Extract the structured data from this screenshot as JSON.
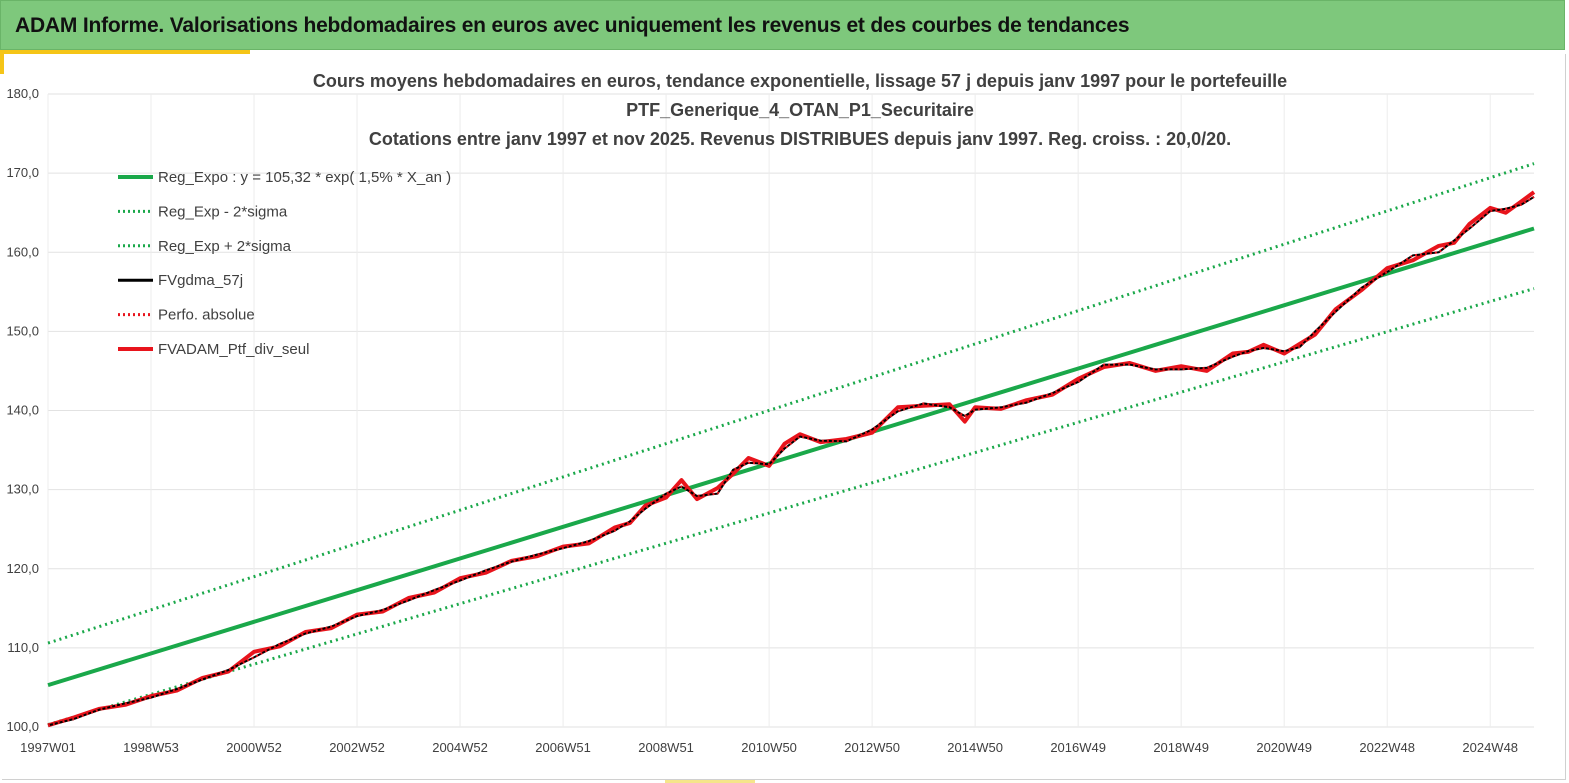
{
  "header": {
    "title": "ADAM Informe. Valorisations hebdomadaires en euros avec uniquement les revenus et des courbes de tendances"
  },
  "colors": {
    "header_bg": "#7ec87c",
    "accent": "#f5c518",
    "trend": "#1aa84a",
    "smooth": "#000000",
    "portfolio": "#e8141c"
  },
  "chart_data": {
    "type": "line",
    "title_lines": [
      "Cours moyens hebdomadaires  en euros, tendance exponentielle, lissage 57 j depuis janv 1997 pour le portefeuille",
      "PTF_Generique_4_OTAN_P1_Securitaire",
      "Cotations entre janv 1997 et nov 2025. Revenus DISTRIBUES depuis janv 1997. Reg. croiss. : 20,0/20."
    ],
    "x_range": [
      1997.0,
      2025.85
    ],
    "ylim": [
      100,
      180
    ],
    "y_ticks": [
      "100,0",
      "110,0",
      "120,0",
      "130,0",
      "140,0",
      "150,0",
      "160,0",
      "170,0",
      "180,0"
    ],
    "x_ticks": [
      {
        "label": "1997W01",
        "t": 1997.0
      },
      {
        "label": "1998W53",
        "t": 1999.0
      },
      {
        "label": "2000W52",
        "t": 2001.0
      },
      {
        "label": "2002W52",
        "t": 2003.0
      },
      {
        "label": "2004W52",
        "t": 2005.0
      },
      {
        "label": "2006W51",
        "t": 2007.0
      },
      {
        "label": "2008W51",
        "t": 2009.0
      },
      {
        "label": "2010W50",
        "t": 2011.0
      },
      {
        "label": "2012W50",
        "t": 2013.0
      },
      {
        "label": "2014W50",
        "t": 2015.0
      },
      {
        "label": "2016W49",
        "t": 2017.0
      },
      {
        "label": "2018W49",
        "t": 2019.0
      },
      {
        "label": "2020W49",
        "t": 2021.0
      },
      {
        "label": "2022W48",
        "t": 2023.0
      },
      {
        "label": "2024W48",
        "t": 2025.0
      }
    ],
    "grid": true,
    "legend_position": "top-left",
    "series": [
      {
        "name": "Reg_Expo : y = 105,32 * exp( 1,5% *  X_an )",
        "style": "solid",
        "color": "#1aa84a",
        "x": [
          1997.0,
          2025.85
        ],
        "values": [
          105.3,
          163.0
        ]
      },
      {
        "name": "Reg_Exp - 2*sigma",
        "style": "dotted",
        "color": "#1aa84a",
        "x": [
          1997.0,
          2025.85
        ],
        "values": [
          100.3,
          155.4
        ]
      },
      {
        "name": "Reg_Exp + 2*sigma",
        "style": "dotted",
        "color": "#1aa84a",
        "x": [
          1997.0,
          2025.85
        ],
        "values": [
          110.6,
          171.2
        ]
      },
      {
        "name": "FVgdma_57j",
        "style": "solid",
        "color": "#000000",
        "x": [
          1997.0,
          1997.5,
          1998.0,
          1998.5,
          1999.0,
          1999.5,
          2000.0,
          2000.5,
          2001.0,
          2001.5,
          2002.0,
          2002.5,
          2003.0,
          2003.5,
          2004.0,
          2004.5,
          2005.0,
          2005.5,
          2006.0,
          2006.5,
          2007.0,
          2007.5,
          2008.0,
          2008.3,
          2008.6,
          2009.0,
          2009.3,
          2009.6,
          2010.0,
          2010.3,
          2010.6,
          2011.0,
          2011.3,
          2011.6,
          2012.0,
          2012.5,
          2013.0,
          2013.5,
          2014.0,
          2014.5,
          2014.8,
          2015.0,
          2015.5,
          2016.0,
          2016.5,
          2017.0,
          2017.5,
          2018.0,
          2018.5,
          2019.0,
          2019.5,
          2020.0,
          2020.3,
          2020.6,
          2021.0,
          2021.3,
          2021.6,
          2022.0,
          2022.5,
          2023.0,
          2023.5,
          2024.0,
          2024.3,
          2024.6,
          2025.0,
          2025.3,
          2025.6,
          2025.85
        ],
        "values": [
          100.2,
          101.0,
          102.2,
          103.0,
          103.7,
          104.8,
          106.0,
          107.2,
          108.8,
          110.5,
          111.8,
          112.7,
          114.0,
          114.8,
          116.0,
          117.3,
          118.5,
          119.8,
          120.9,
          121.8,
          122.6,
          123.5,
          124.8,
          126.0,
          127.6,
          129.5,
          130.4,
          129.2,
          129.5,
          132.5,
          133.4,
          133.2,
          135.2,
          136.7,
          136.2,
          136.1,
          137.6,
          139.9,
          140.9,
          140.4,
          139.3,
          140.1,
          140.4,
          141.0,
          142.2,
          143.6,
          145.8,
          145.8,
          145.2,
          145.2,
          145.4,
          146.8,
          147.5,
          147.9,
          147.5,
          148.0,
          150.0,
          152.5,
          155.5,
          157.5,
          159.6,
          160.0,
          161.5,
          163.0,
          165.2,
          165.5,
          166.0,
          167.0
        ]
      },
      {
        "name": "Perfo. absolue",
        "style": "dotted",
        "color": "#e8141c",
        "x": [
          1997.0,
          1997.5,
          1998.0,
          1998.5,
          1999.0,
          1999.5,
          2000.0,
          2000.5,
          2001.0,
          2001.5,
          2002.0,
          2002.5,
          2003.0,
          2003.5,
          2004.0,
          2004.5,
          2005.0,
          2005.5,
          2006.0,
          2006.5,
          2007.0,
          2007.5,
          2008.0,
          2008.3,
          2008.6,
          2009.0,
          2009.3,
          2009.6,
          2010.0,
          2010.3,
          2010.6,
          2011.0,
          2011.3,
          2011.6,
          2012.0,
          2012.5,
          2013.0,
          2013.5,
          2014.0,
          2014.5,
          2014.8,
          2015.0,
          2015.5,
          2016.0,
          2016.5,
          2017.0,
          2017.5,
          2018.0,
          2018.5,
          2019.0,
          2019.5,
          2020.0,
          2020.3,
          2020.6,
          2021.0,
          2021.3,
          2021.6,
          2022.0,
          2022.5,
          2023.0,
          2023.5,
          2024.0,
          2024.3,
          2024.6,
          2025.0,
          2025.3,
          2025.6,
          2025.85
        ],
        "values": [
          100.2,
          101.0,
          102.2,
          103.0,
          103.7,
          104.8,
          106.0,
          107.2,
          108.8,
          110.5,
          111.8,
          112.7,
          114.0,
          114.8,
          116.0,
          117.3,
          118.5,
          119.8,
          120.9,
          121.8,
          122.6,
          123.5,
          124.8,
          126.0,
          127.6,
          129.5,
          130.4,
          129.2,
          129.5,
          132.5,
          133.4,
          133.2,
          135.2,
          136.7,
          136.2,
          136.1,
          137.6,
          139.9,
          140.9,
          140.4,
          139.3,
          140.1,
          140.4,
          141.0,
          142.2,
          143.6,
          145.8,
          145.8,
          145.2,
          145.2,
          145.4,
          146.8,
          147.5,
          147.9,
          147.5,
          148.0,
          150.0,
          152.5,
          155.5,
          157.5,
          159.6,
          160.0,
          161.5,
          163.0,
          165.2,
          165.5,
          166.0,
          167.0
        ]
      },
      {
        "name": "FVADAM_Ptf_div_seul",
        "style": "solid",
        "color": "#e8141c",
        "x": [
          1997.0,
          1997.5,
          1998.0,
          1998.5,
          1999.0,
          1999.5,
          2000.0,
          2000.5,
          2001.0,
          2001.5,
          2002.0,
          2002.5,
          2003.0,
          2003.5,
          2004.0,
          2004.5,
          2005.0,
          2005.5,
          2006.0,
          2006.5,
          2007.0,
          2007.5,
          2008.0,
          2008.3,
          2008.6,
          2009.0,
          2009.3,
          2009.6,
          2010.0,
          2010.3,
          2010.6,
          2011.0,
          2011.3,
          2011.6,
          2012.0,
          2012.5,
          2013.0,
          2013.5,
          2014.0,
          2014.5,
          2014.8,
          2015.0,
          2015.5,
          2016.0,
          2016.5,
          2017.0,
          2017.5,
          2018.0,
          2018.5,
          2019.0,
          2019.5,
          2020.0,
          2020.3,
          2020.6,
          2021.0,
          2021.3,
          2021.6,
          2022.0,
          2022.5,
          2023.0,
          2023.5,
          2024.0,
          2024.3,
          2024.6,
          2025.0,
          2025.3,
          2025.6,
          2025.85
        ],
        "values": [
          100.2,
          101.2,
          102.3,
          102.8,
          103.9,
          104.6,
          106.2,
          107.0,
          109.5,
          110.2,
          112.0,
          112.5,
          114.2,
          114.6,
          116.3,
          117.0,
          118.8,
          119.5,
          121.0,
          121.6,
          122.8,
          123.2,
          125.2,
          125.8,
          128.0,
          129.0,
          131.2,
          128.8,
          130.2,
          132.0,
          134.0,
          133.0,
          135.8,
          137.0,
          136.0,
          136.4,
          137.2,
          140.4,
          140.6,
          140.8,
          138.6,
          140.4,
          140.2,
          141.3,
          142.0,
          144.0,
          145.5,
          146.0,
          145.0,
          145.6,
          145.0,
          147.2,
          147.4,
          148.3,
          147.2,
          148.4,
          149.6,
          152.8,
          155.2,
          158.0,
          159.0,
          160.8,
          161.2,
          163.6,
          165.6,
          165.0,
          166.4,
          167.6
        ]
      }
    ]
  }
}
